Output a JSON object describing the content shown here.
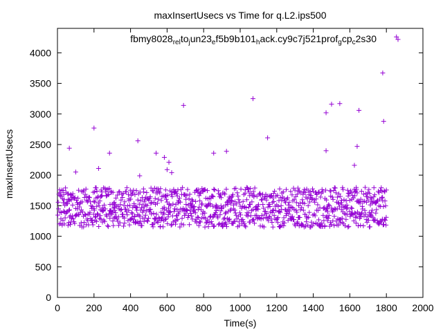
{
  "chart_data": {
    "type": "scatter",
    "title": "maxInsertUsecs vs Time for q.L2.ips500",
    "xlabel": "Time(s)",
    "ylabel": "maxInsertUsecs",
    "xlim": [
      0,
      2000
    ],
    "ylim": [
      0,
      4400
    ],
    "xticks": [
      0,
      200,
      400,
      600,
      800,
      1000,
      1200,
      1400,
      1600,
      1800,
      2000
    ],
    "yticks": [
      0,
      500,
      1000,
      1500,
      2000,
      2500,
      3000,
      3500,
      4000
    ],
    "grid": false,
    "legend_position": "top-center",
    "marker": "+",
    "series": [
      {
        "name_parts": [
          {
            "text": "fbmy8028",
            "sub": false
          },
          {
            "text": "rel",
            "sub": true
          },
          {
            "text": "to",
            "sub": false
          },
          {
            "text": "j",
            "sub": true
          },
          {
            "text": "un23",
            "sub": false
          },
          {
            "text": "e",
            "sub": true
          },
          {
            "text": "f5b9b101",
            "sub": false
          },
          {
            "text": "h",
            "sub": true
          },
          {
            "text": "ack.cy9c7j521prof",
            "sub": false
          },
          {
            "text": "g",
            "sub": true
          },
          {
            "text": "cp",
            "sub": false
          },
          {
            "text": "c",
            "sub": true
          },
          {
            "text": "2s30",
            "sub": false
          }
        ],
        "color": "#9400d3",
        "outliers": [
          [
            65,
            2440
          ],
          [
            100,
            2050
          ],
          [
            200,
            2770
          ],
          [
            225,
            2110
          ],
          [
            285,
            2360
          ],
          [
            440,
            2560
          ],
          [
            450,
            1990
          ],
          [
            540,
            2360
          ],
          [
            585,
            2290
          ],
          [
            600,
            2090
          ],
          [
            610,
            2210
          ],
          [
            625,
            2040
          ],
          [
            690,
            3140
          ],
          [
            855,
            2360
          ],
          [
            925,
            2390
          ],
          [
            1070,
            3250
          ],
          [
            1150,
            2610
          ],
          [
            1470,
            3020
          ],
          [
            1470,
            2400
          ],
          [
            1500,
            3160
          ],
          [
            1545,
            3170
          ],
          [
            1625,
            2160
          ],
          [
            1640,
            2470
          ],
          [
            1650,
            3060
          ],
          [
            1780,
            3670
          ],
          [
            1785,
            2880
          ],
          [
            1855,
            4260
          ]
        ],
        "bulk": {
          "x_range": [
            0,
            1800
          ],
          "band_low": [
            1150,
            1450
          ],
          "band_high": [
            1450,
            1800
          ]
        }
      }
    ]
  }
}
